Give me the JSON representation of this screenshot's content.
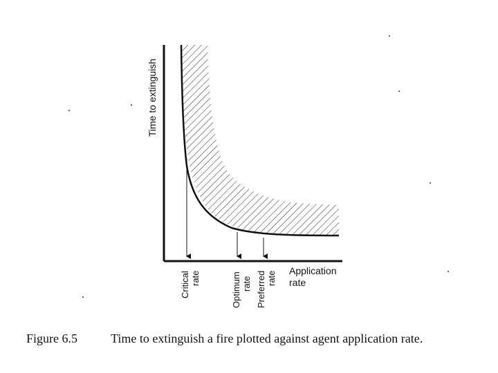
{
  "diagram": {
    "y_axis_label": "Time to extinguish",
    "x_axis_label_line1": "Application",
    "x_axis_label_line2": "rate",
    "markers": {
      "critical": {
        "line1": "Critical",
        "line2": "rate"
      },
      "optimum": {
        "line1": "Optimum",
        "line2": "rate"
      },
      "preferred": {
        "line1": "Preferred",
        "line2": "rate"
      }
    },
    "caption_number": "Figure 6.5",
    "caption_text": "Time to extinguish a fire plotted against agent application rate."
  }
}
